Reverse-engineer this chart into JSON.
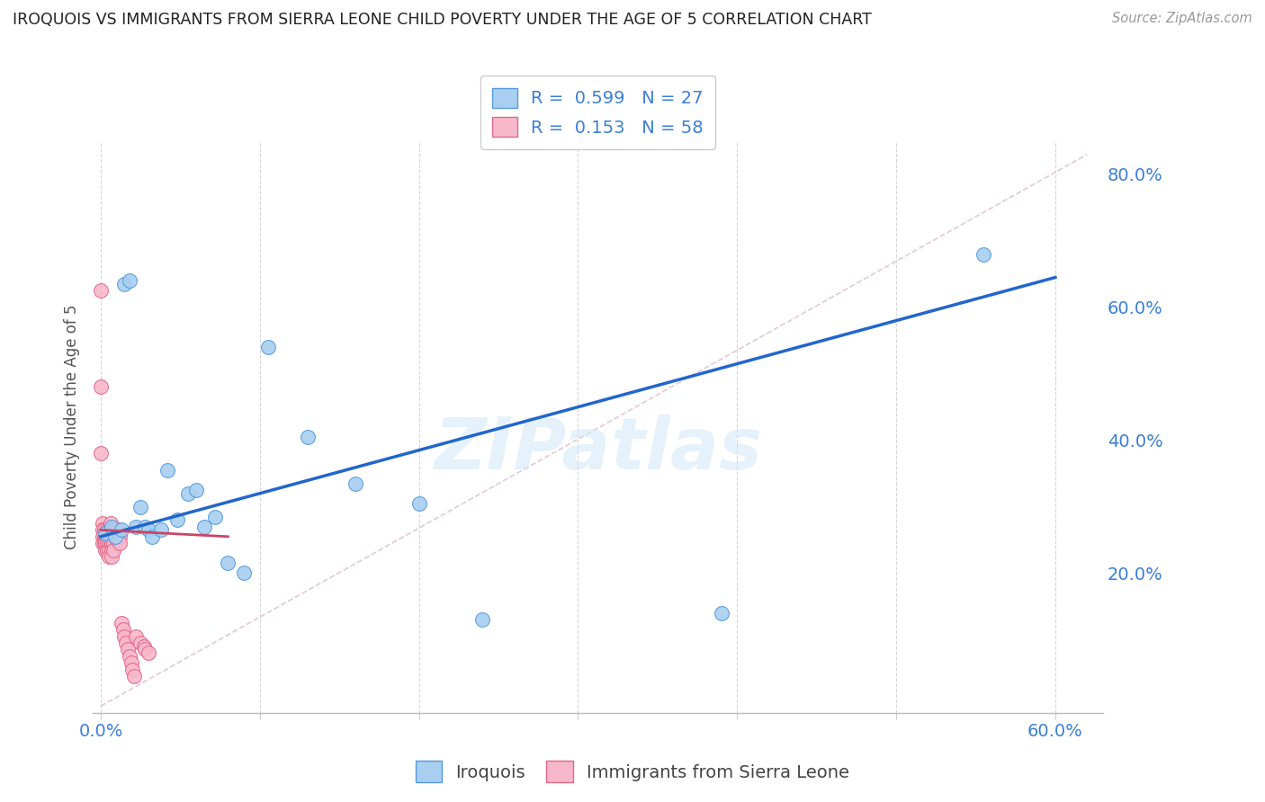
{
  "title": "IROQUOIS VS IMMIGRANTS FROM SIERRA LEONE CHILD POVERTY UNDER THE AGE OF 5 CORRELATION CHART",
  "source": "Source: ZipAtlas.com",
  "ylabel": "Child Poverty Under the Age of 5",
  "xlim": [
    -0.005,
    0.63
  ],
  "ylim": [
    -0.01,
    0.85
  ],
  "legend_iroquois_R": "0.599",
  "legend_iroquois_N": "27",
  "legend_sierra_R": "0.153",
  "legend_sierra_N": "58",
  "iroquois_color": "#a8cff0",
  "iroquois_edge": "#5599dd",
  "sierra_color": "#f8b8cc",
  "sierra_edge": "#e06888",
  "trend_iroquois_color": "#2266cc",
  "trend_sierra_color": "#cc4466",
  "watermark": "ZIPatlas",
  "iroquois_x": [
    0.003,
    0.007,
    0.009,
    0.013,
    0.015,
    0.018,
    0.022,
    0.025,
    0.028,
    0.03,
    0.032,
    0.038,
    0.042,
    0.048,
    0.055,
    0.06,
    0.065,
    0.072,
    0.08,
    0.09,
    0.105,
    0.13,
    0.16,
    0.2,
    0.24,
    0.39,
    0.555
  ],
  "iroquois_y": [
    0.26,
    0.27,
    0.255,
    0.265,
    0.635,
    0.64,
    0.27,
    0.3,
    0.27,
    0.265,
    0.255,
    0.265,
    0.355,
    0.28,
    0.32,
    0.325,
    0.27,
    0.285,
    0.215,
    0.2,
    0.54,
    0.405,
    0.335,
    0.305,
    0.13,
    0.14,
    0.68
  ],
  "sierra_x": [
    0.0,
    0.0,
    0.0,
    0.001,
    0.001,
    0.001,
    0.001,
    0.002,
    0.002,
    0.002,
    0.003,
    0.003,
    0.003,
    0.003,
    0.004,
    0.004,
    0.004,
    0.004,
    0.005,
    0.005,
    0.005,
    0.005,
    0.005,
    0.006,
    0.006,
    0.006,
    0.006,
    0.007,
    0.007,
    0.007,
    0.007,
    0.007,
    0.008,
    0.008,
    0.008,
    0.008,
    0.009,
    0.009,
    0.01,
    0.01,
    0.011,
    0.011,
    0.012,
    0.012,
    0.013,
    0.014,
    0.015,
    0.016,
    0.017,
    0.018,
    0.019,
    0.02,
    0.021,
    0.022,
    0.025,
    0.027,
    0.028,
    0.03
  ],
  "sierra_y": [
    0.625,
    0.48,
    0.38,
    0.275,
    0.265,
    0.255,
    0.245,
    0.265,
    0.255,
    0.245,
    0.26,
    0.255,
    0.245,
    0.235,
    0.265,
    0.255,
    0.245,
    0.235,
    0.265,
    0.255,
    0.245,
    0.235,
    0.225,
    0.275,
    0.265,
    0.255,
    0.245,
    0.265,
    0.255,
    0.245,
    0.235,
    0.225,
    0.265,
    0.255,
    0.245,
    0.235,
    0.265,
    0.255,
    0.26,
    0.25,
    0.265,
    0.255,
    0.255,
    0.245,
    0.125,
    0.115,
    0.105,
    0.095,
    0.085,
    0.075,
    0.065,
    0.055,
    0.045,
    0.105,
    0.095,
    0.09,
    0.085,
    0.08
  ],
  "trend_iroquois_x0": 0.0,
  "trend_iroquois_x1": 0.6,
  "trend_iroquois_y0": 0.255,
  "trend_iroquois_y1": 0.645,
  "trend_sierra_x0": 0.0,
  "trend_sierra_x1": 0.1,
  "trend_sierra_y0": 0.27,
  "trend_sierra_y1": 0.245,
  "ref_line_x0": 0.0,
  "ref_line_y0": 0.0,
  "ref_line_x1": 0.62,
  "ref_line_y1": 0.83
}
